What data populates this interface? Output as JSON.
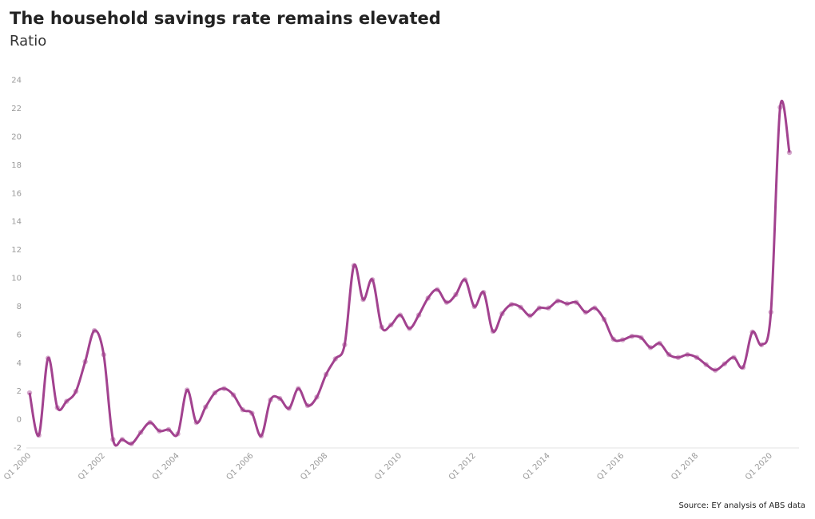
{
  "chart_data": {
    "type": "line",
    "title": "The household savings rate remains elevated",
    "subtitle": "Ratio",
    "source": "Source: EY analysis of ABS data",
    "categories": [
      "Q1 2000",
      null,
      null,
      null,
      null,
      null,
      null,
      null,
      "Q1 2002",
      null,
      null,
      null,
      null,
      null,
      null,
      null,
      "Q1 2004",
      null,
      null,
      null,
      null,
      null,
      null,
      null,
      "Q1 2006",
      null,
      null,
      null,
      null,
      null,
      null,
      null,
      "Q1 2008",
      null,
      null,
      null,
      null,
      null,
      null,
      null,
      "Q1 2010",
      null,
      null,
      null,
      null,
      null,
      null,
      null,
      "Q1 2012",
      null,
      null,
      null,
      null,
      null,
      null,
      null,
      "Q1 2014",
      null,
      null,
      null,
      null,
      null,
      null,
      null,
      "Q1 2016",
      null,
      null,
      null,
      null,
      null,
      null,
      null,
      "Q1 2018",
      null,
      null,
      null,
      null,
      null,
      null,
      null,
      "Q1 2020",
      null,
      null
    ],
    "values": [
      1.9,
      -1.1,
      4.35,
      0.85,
      1.3,
      2.0,
      4.1,
      6.3,
      4.6,
      -1.4,
      -1.4,
      -1.7,
      -0.9,
      -0.2,
      -0.8,
      -0.7,
      -1.0,
      2.1,
      -0.2,
      0.9,
      1.9,
      2.2,
      1.75,
      0.7,
      0.45,
      -1.15,
      1.4,
      1.5,
      0.8,
      2.2,
      1.0,
      1.6,
      3.2,
      4.3,
      5.3,
      10.9,
      8.5,
      9.9,
      6.55,
      6.7,
      7.4,
      6.45,
      7.4,
      8.6,
      9.2,
      8.3,
      8.85,
      9.9,
      8.0,
      9.0,
      6.25,
      7.5,
      8.15,
      7.95,
      7.35,
      7.9,
      7.9,
      8.4,
      8.2,
      8.3,
      7.6,
      7.9,
      7.1,
      5.7,
      5.65,
      5.9,
      5.8,
      5.1,
      5.4,
      4.6,
      4.4,
      4.6,
      4.4,
      3.9,
      3.5,
      3.95,
      4.4,
      3.7,
      6.2,
      5.3,
      7.6,
      22.1,
      18.9
    ],
    "color": "#a2428f",
    "ylim": [
      -2,
      25
    ],
    "yticks": [
      -2,
      0,
      2,
      4,
      6,
      8,
      10,
      12,
      14,
      16,
      18,
      20,
      22,
      24
    ],
    "grid": false
  }
}
